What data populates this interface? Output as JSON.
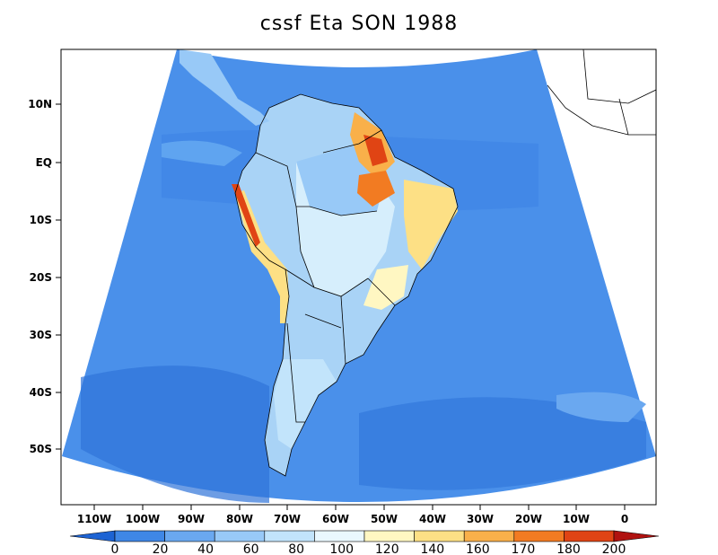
{
  "title": "cssf Eta SON 1988",
  "map": {
    "lat_labels": [
      "10N",
      "EQ",
      "10S",
      "20S",
      "30S",
      "40S",
      "50S"
    ],
    "lon_labels": [
      "110W",
      "100W",
      "90W",
      "80W",
      "70W",
      "60W",
      "50W",
      "40W",
      "30W",
      "20W",
      "10W",
      "0"
    ]
  },
  "colorbar": {
    "labels": [
      "0",
      "20",
      "40",
      "60",
      "80",
      "100",
      "120",
      "140",
      "160",
      "170",
      "180",
      "200"
    ],
    "colors": [
      "#1d63d3",
      "#3f87e6",
      "#6aa8f0",
      "#98c9f7",
      "#c2e4fb",
      "#eaf8fe",
      "#fff7c2",
      "#fde085",
      "#f9b04a",
      "#f27b22",
      "#e04414",
      "#b01210"
    ]
  },
  "palette": {
    "ocean": "#4a90ea",
    "ocean_dark": "#3c82e3",
    "ocean_light": "#5fa4f0",
    "land_light": "#a9d3f6",
    "land_pale": "#d6eefc",
    "outside": "#ffffff"
  }
}
